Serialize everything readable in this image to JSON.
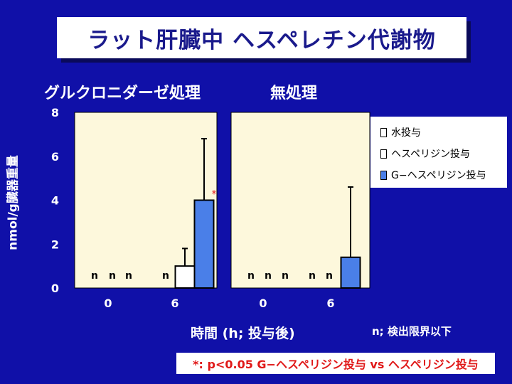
{
  "title": "ラット肝臓中 ヘスペレチン代謝物",
  "panel_labels": [
    "グルクロニダーゼ処理",
    "無処理"
  ],
  "legend": [
    {
      "label": "水投与",
      "color": "#ffffff"
    },
    {
      "label": "ヘスペリジン投与",
      "color": "#ffffff"
    },
    {
      "label": "G−ヘスペリジン投与",
      "color": "#4a7fe8"
    }
  ],
  "x_title": "時間 (h; 投与後)",
  "detection_note": "n; 検出限界以下",
  "significance_note": "*: p<0.05 G−ヘスペリジン投与 vs ヘスペリジン投与",
  "chart_data": [
    {
      "type": "bar",
      "title": "グルクロニダーゼ処理",
      "categories": [
        "0",
        "6"
      ],
      "ylabel": "nmol/g臓器重量",
      "xlabel": "時間 (h; 投与後)",
      "ylim": [
        0,
        8
      ],
      "yticks": [
        0,
        2,
        4,
        6,
        8
      ],
      "series": [
        {
          "name": "水投与",
          "values": [
            null,
            null
          ],
          "error": [
            null,
            null
          ],
          "labels": [
            "n",
            "n"
          ]
        },
        {
          "name": "ヘスペリジン投与",
          "values": [
            null,
            1.0
          ],
          "error": [
            null,
            0.8
          ],
          "labels": [
            "n",
            ""
          ]
        },
        {
          "name": "G−ヘスペリジン投与",
          "values": [
            null,
            4.0
          ],
          "error": [
            null,
            2.8
          ],
          "labels": [
            "n",
            ""
          ]
        }
      ],
      "annotations": [
        {
          "text": "*",
          "category": "6",
          "series": "G−ヘスペリジン投与"
        }
      ]
    },
    {
      "type": "bar",
      "title": "無処理",
      "categories": [
        "0",
        "6"
      ],
      "ylabel": "nmol/g臓器重量",
      "xlabel": "時間 (h; 投与後)",
      "ylim": [
        0,
        8
      ],
      "yticks": [
        0,
        2,
        4,
        6,
        8
      ],
      "series": [
        {
          "name": "水投与",
          "values": [
            null,
            null
          ],
          "error": [
            null,
            null
          ],
          "labels": [
            "n",
            "n"
          ]
        },
        {
          "name": "ヘスペリジン投与",
          "values": [
            null,
            null
          ],
          "error": [
            null,
            null
          ],
          "labels": [
            "n",
            "n"
          ]
        },
        {
          "name": "G−ヘスペリジン投与",
          "values": [
            null,
            1.4
          ],
          "error": [
            null,
            3.2
          ],
          "labels": [
            "n",
            ""
          ]
        }
      ],
      "annotations": []
    }
  ]
}
